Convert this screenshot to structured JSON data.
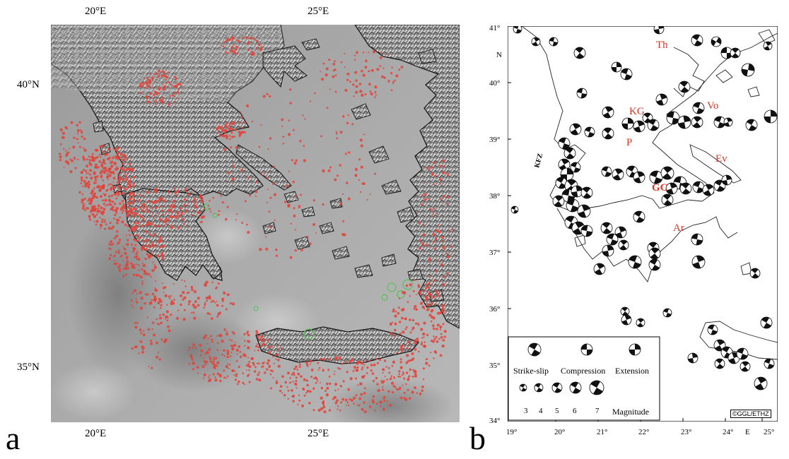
{
  "panel_a": {
    "letter": "a",
    "lon_ticks_top": [
      "20°E",
      "25°E"
    ],
    "lon_ticks_bottom": [
      "20°E",
      "25°E"
    ],
    "lat_ticks": [
      "40°N",
      "35°N"
    ],
    "colors": {
      "epicenter": "#e2433a",
      "focal": "#58c05a",
      "coast": "#111111"
    }
  },
  "panel_b": {
    "letter": "b",
    "lat_ticks": [
      "41°",
      "N",
      "40°",
      "39°",
      "38°",
      "37°",
      "36°",
      "35°",
      "34°"
    ],
    "lon_ticks": [
      "19°",
      "20°",
      "21°",
      "22°",
      "23°",
      "24°",
      "E",
      "25°"
    ],
    "regions": {
      "th": "Th",
      "kg": "KG",
      "vo": "Vo",
      "p": "P",
      "ev": "Ev",
      "gc": "GC",
      "ar": "Ar"
    },
    "fault_label": "KFZ",
    "legend": {
      "mech_strike": "Strike-slip",
      "mech_comp": "Compression",
      "mech_ext": "Extension",
      "magnitudes": [
        "3",
        "4",
        "5",
        "6",
        "7"
      ],
      "magnitude_label": "Magnitude"
    },
    "credit": "©GGL/ETHZ",
    "colors": {
      "region_text": "#d23a2a"
    }
  }
}
